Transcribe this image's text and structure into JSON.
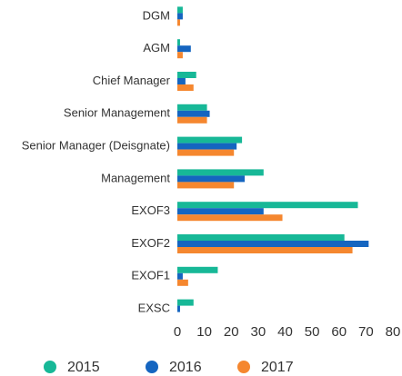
{
  "chart_data": {
    "type": "barh",
    "categories": [
      "DGM",
      "AGM",
      "Chief Manager",
      "Senior Management",
      "Senior Manager (Deisgnate)",
      "Management",
      "EXOF3",
      "EXOF2",
      "EXOF1",
      "EXSC"
    ],
    "series": [
      {
        "name": "2015",
        "color": "#17b897",
        "values": [
          2,
          1,
          7,
          11,
          24,
          32,
          67,
          62,
          15,
          6
        ]
      },
      {
        "name": "2016",
        "color": "#1565c0",
        "values": [
          2,
          5,
          3,
          12,
          22,
          25,
          32,
          71,
          2,
          1
        ]
      },
      {
        "name": "2017",
        "color": "#f5872f",
        "values": [
          1,
          2,
          6,
          11,
          21,
          21,
          39,
          65,
          4,
          0
        ]
      }
    ],
    "xlim": [
      0,
      80
    ],
    "xticks": [
      0,
      10,
      20,
      30,
      40,
      50,
      60,
      70,
      80
    ],
    "grid": false
  }
}
